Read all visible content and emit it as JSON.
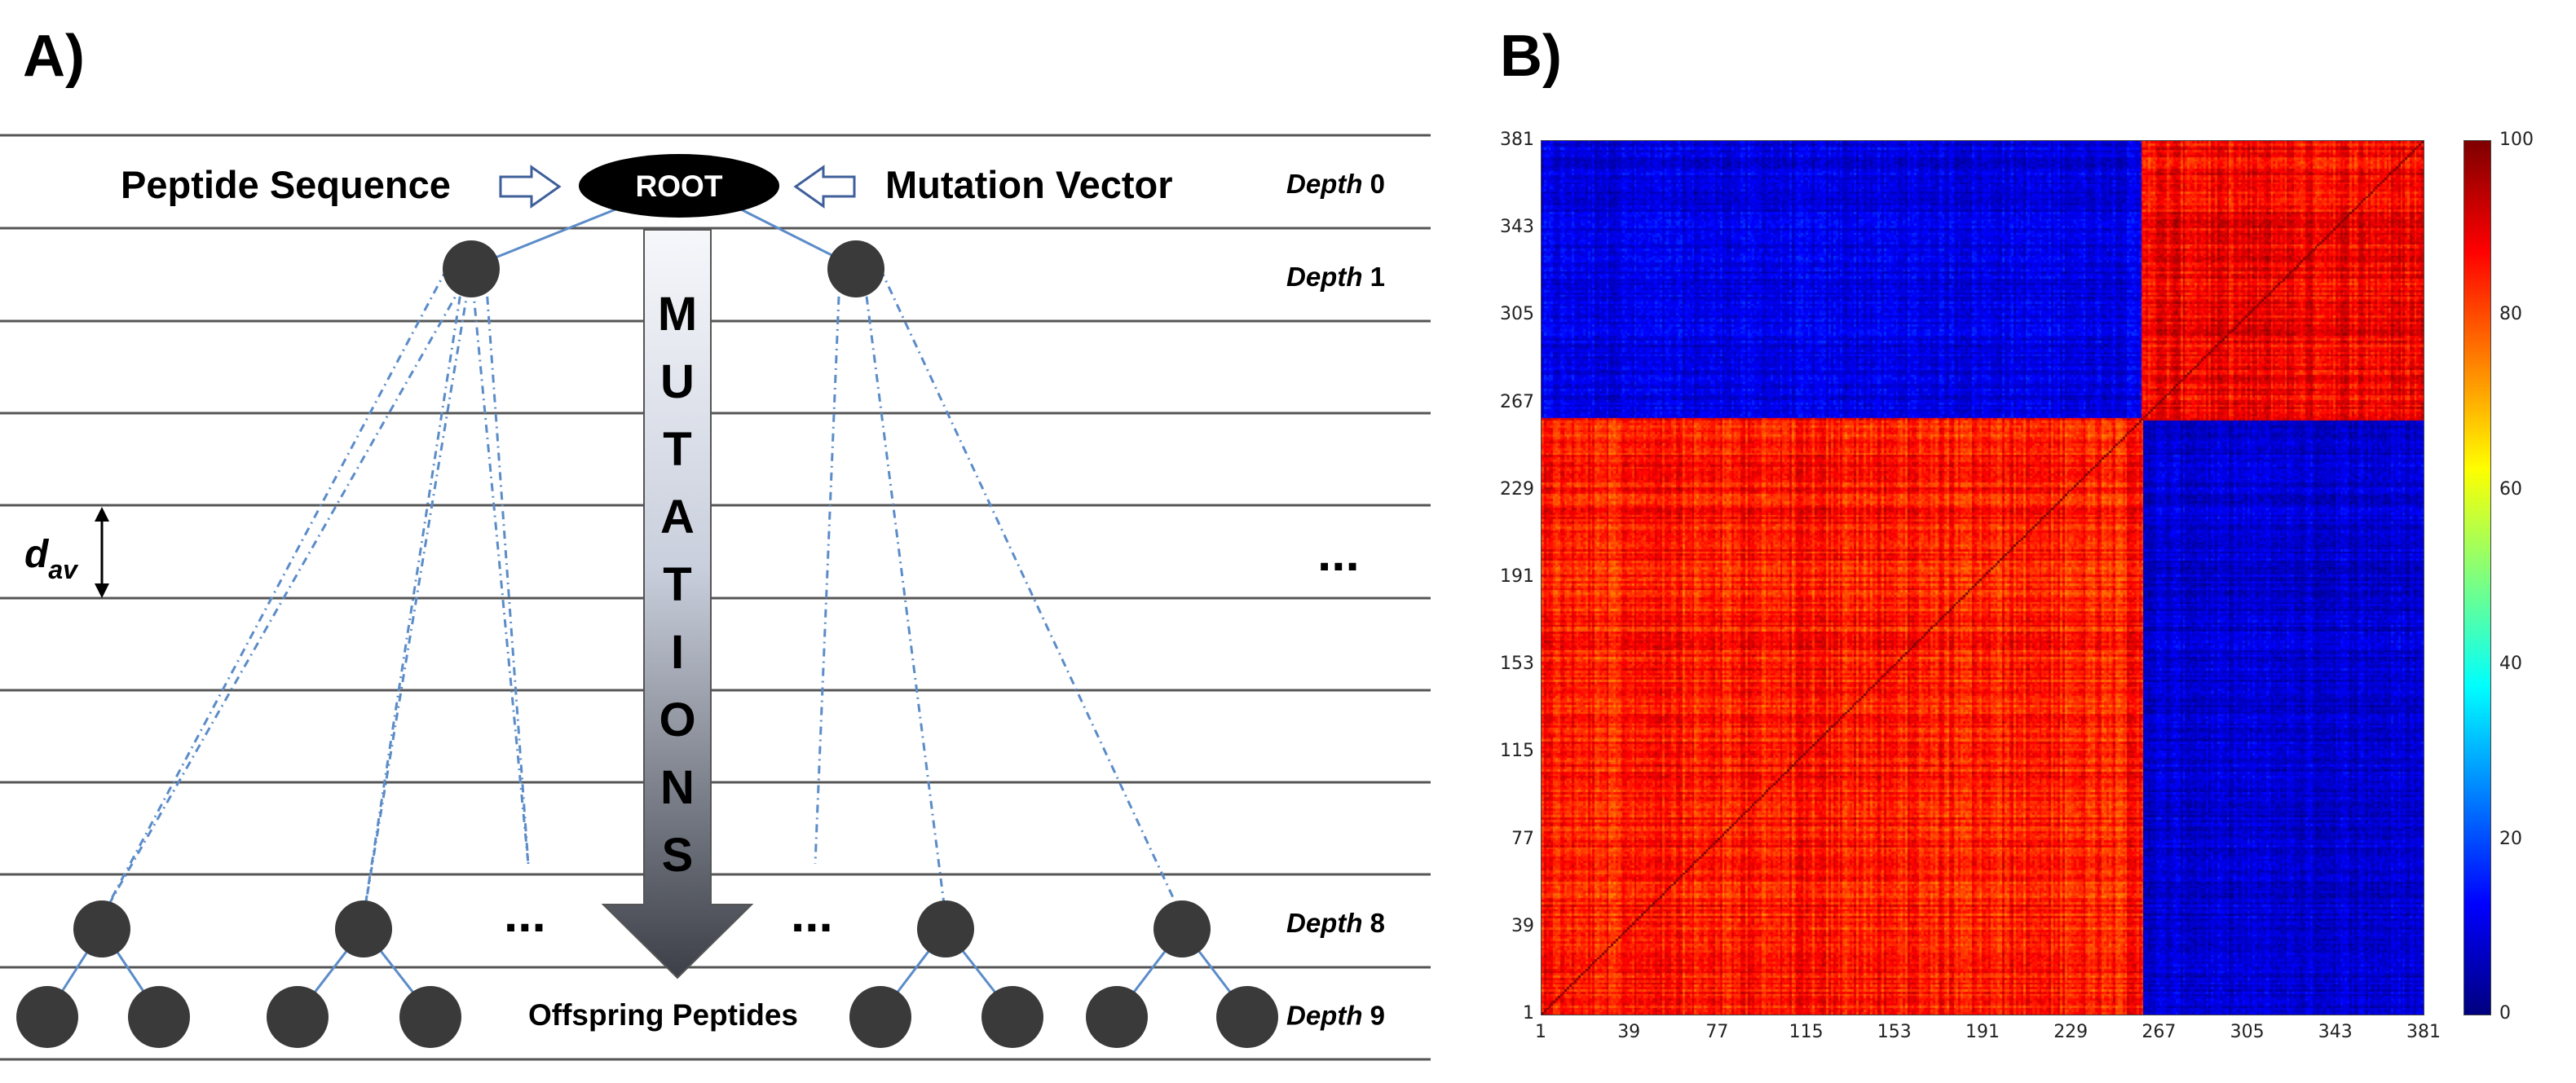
{
  "panel_a": {
    "label": "A)",
    "root_label": "ROOT",
    "left_input": "Peptide Sequence",
    "right_input": "Mutation Vector",
    "arrow_letters": [
      "M",
      "U",
      "T",
      "A",
      "T",
      "I",
      "O",
      "N",
      "S"
    ],
    "distance_symbol": "d",
    "distance_subscript": "av",
    "ellipsis": "...",
    "offspring_label": "Offspring Peptides",
    "depth_word": "Depth",
    "depths": [
      {
        "row": 0,
        "value": "0"
      },
      {
        "row": 1,
        "value": "1"
      },
      {
        "row": 8,
        "value": "8"
      },
      {
        "row": 9,
        "value": "9"
      }
    ],
    "colors": {
      "node": "#3a3a3a",
      "edge": "#5b8cc8",
      "line": "#555555"
    }
  },
  "panel_b": {
    "label": "B)"
  },
  "chart_data": {
    "type": "heatmap",
    "title": "",
    "xlabel": "",
    "ylabel": "",
    "x_ticks": [
      "1",
      "39",
      "77",
      "115",
      "153",
      "191",
      "229",
      "267",
      "305",
      "343",
      "381"
    ],
    "y_ticks": [
      "381",
      "343",
      "305",
      "267",
      "229",
      "191",
      "153",
      "115",
      "77",
      "39",
      "1"
    ],
    "xlim": [
      1,
      381
    ],
    "ylim": [
      1,
      381
    ],
    "colorbar_ticks": [
      "100",
      "80",
      "60",
      "40",
      "20",
      "0"
    ],
    "colorbar_range": [
      0,
      100
    ],
    "colormap": "jet",
    "blocks": [
      {
        "x_range": [
          1,
          260
        ],
        "y_range": [
          1,
          260
        ],
        "approx_value": 85,
        "region": "lower-left"
      },
      {
        "x_range": [
          260,
          381
        ],
        "y_range": [
          260,
          381
        ],
        "approx_value": 88,
        "region": "upper-right"
      },
      {
        "x_range": [
          1,
          260
        ],
        "y_range": [
          260,
          381
        ],
        "approx_value": 10,
        "region": "upper-left"
      },
      {
        "x_range": [
          260,
          381
        ],
        "y_range": [
          1,
          260
        ],
        "approx_value": 8,
        "region": "lower-right"
      }
    ],
    "diagonal_value": 100,
    "grid": false
  }
}
